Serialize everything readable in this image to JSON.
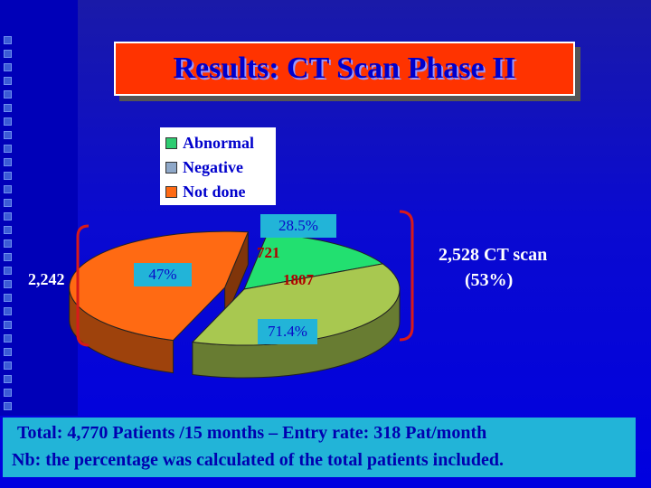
{
  "title": "Results: CT Scan Phase II",
  "legend": [
    {
      "label": "Abnormal",
      "color": "#2ecc71"
    },
    {
      "label": "Negative",
      "color": "#8fa8c8"
    },
    {
      "label": "Not done",
      "color": "#ff6a13"
    }
  ],
  "chart_data": {
    "type": "pie",
    "slices": [
      {
        "name": "Abnormal",
        "value": 721,
        "color": "#22e070"
      },
      {
        "name": "Negative",
        "value": 1807,
        "color": "#a8c850"
      },
      {
        "name": "Not done",
        "value": 2242,
        "color": "#ff6a13"
      }
    ],
    "labels": {
      "not_done_count": "2,242",
      "not_done_pct": "47%",
      "abnormal_pct": "28.5%",
      "abnormal_count": "721",
      "negative_count": "1807",
      "negative_pct": "71.4%",
      "ct_scan_line1": "2,528 CT scan",
      "ct_scan_line2": "(53%)"
    }
  },
  "footer": {
    "line1": "Total: 4,770 Patients /15 months – Entry rate: 318 Pat/month",
    "line2": "Nb: the percentage was calculated of the total  patients included."
  }
}
